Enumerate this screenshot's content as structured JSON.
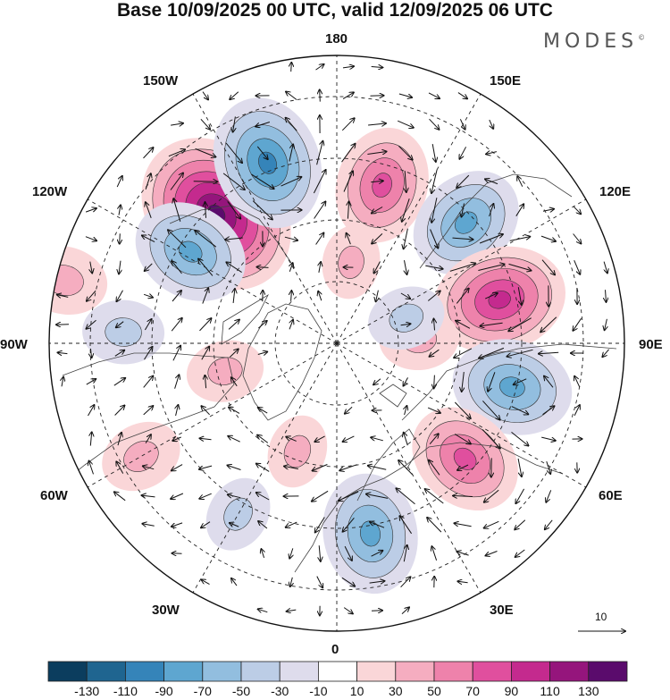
{
  "header": {
    "title": "Base 10/09/2025 00 UTC, valid 12/09/2025 06 UTC",
    "brand": "MODES",
    "brand_mark": "©"
  },
  "longitude_labels": {
    "deg180": "180",
    "e150": "150E",
    "e120": "120E",
    "e90": "90E",
    "e60": "60E",
    "e30": "30E",
    "deg0": "0",
    "w30": "30W",
    "w60": "60W",
    "w90": "90W",
    "w120": "120W",
    "w150": "150W"
  },
  "vector_scale": {
    "label": "10"
  },
  "colorbar": {
    "colors": [
      "#0b3d5e",
      "#1f6590",
      "#3584b9",
      "#5ea6d0",
      "#92bedf",
      "#bccde6",
      "#dedcec",
      "#ffffff",
      "#fad6d8",
      "#f5adc0",
      "#ee82ab",
      "#e04f9e",
      "#c42a8e",
      "#95157c",
      "#5a0b6c"
    ],
    "labels": [
      "-130",
      "-110",
      "-90",
      "-70",
      "-50",
      "-30",
      "-10",
      "10",
      "30",
      "50",
      "70",
      "90",
      "110",
      "130"
    ]
  },
  "anomaly_centers": [
    {
      "lon": -137,
      "lat": 47,
      "value": 125
    },
    {
      "lon": -159,
      "lat": 43,
      "value": -85
    },
    {
      "lon": 164,
      "lat": 50,
      "value": 65
    },
    {
      "lon": 133,
      "lat": 47,
      "value": -65
    },
    {
      "lon": 105,
      "lat": 49,
      "value": 85
    },
    {
      "lon": 76,
      "lat": 46,
      "value": -70
    },
    {
      "lon": 48,
      "lat": 48,
      "value": 65
    },
    {
      "lon": 10,
      "lat": 43,
      "value": -70
    },
    {
      "lon": -122,
      "lat": 48,
      "value": -65
    },
    {
      "lon": -103,
      "lat": 22,
      "value": 30
    },
    {
      "lon": -93,
      "lat": 38,
      "value": -25
    },
    {
      "lon": -60,
      "lat": 35,
      "value": 25
    },
    {
      "lon": -76,
      "lat": 62,
      "value": 20
    },
    {
      "lon": 93,
      "lat": 70,
      "value": 22
    },
    {
      "lon": 110,
      "lat": 72,
      "value": -20
    },
    {
      "lon": -20,
      "lat": 62,
      "value": 15
    },
    {
      "lon": -30,
      "lat": 42,
      "value": -18
    },
    {
      "lon": 170,
      "lat": 70,
      "value": 15
    }
  ]
}
